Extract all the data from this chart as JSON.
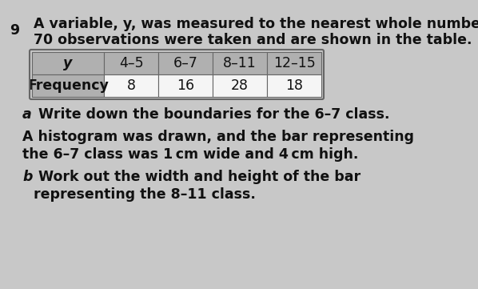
{
  "question_number": "9",
  "intro_line1": "A variable, y, was measured to the nearest whole number.",
  "intro_line2": "70 observations were taken and are shown in the table.",
  "table_header": [
    "y",
    "4–5",
    "6–7",
    "8–11",
    "12–15"
  ],
  "table_row_label": "Frequency",
  "table_frequencies": [
    "8",
    "16",
    "28",
    "18"
  ],
  "part_a_label": "a",
  "part_a_text": " Write down the boundaries for the 6–7 class.",
  "histogram_text_line1": "A histogram was drawn, and the bar representing",
  "histogram_text_line2": "the 6–7 class was 1 cm wide and 4 cm high.",
  "part_b_label": "b",
  "part_b_line1": " Work out the width and height of the bar",
  "part_b_line2": "representing the 8–11 class.",
  "bg_color": "#c8c8c8",
  "table_header_bg": "#b0b0b0",
  "table_cell_bg": "#f5f5f5",
  "text_color": "#111111",
  "font_size": 12.5
}
